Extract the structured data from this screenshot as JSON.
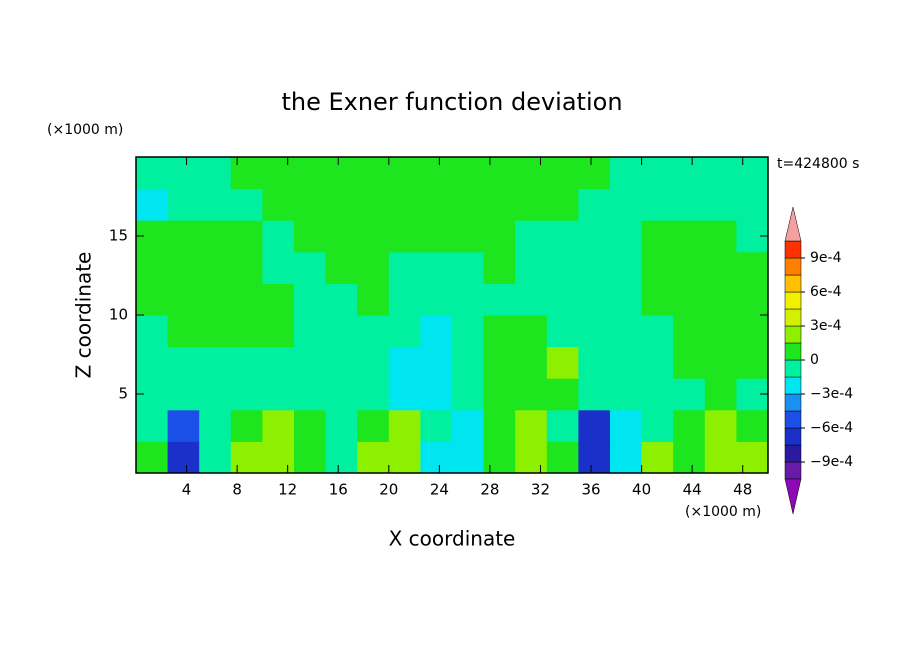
{
  "chart_data": {
    "type": "contour",
    "title": "the Exner function deviation",
    "x_label": "X coordinate",
    "y_label": "Z coordinate",
    "x_unit": "(×1000 m)",
    "y_unit": "(×1000 m)",
    "time_label": "t=424800 s",
    "xlim": [
      0,
      50
    ],
    "ylim": [
      0,
      20
    ],
    "xticks": [
      4,
      8,
      12,
      16,
      20,
      24,
      28,
      32,
      36,
      40,
      44,
      48
    ],
    "yticks": [
      5,
      10,
      15
    ],
    "x": [
      1.25,
      3.75,
      6.25,
      8.75,
      11.25,
      13.75,
      16.25,
      18.75,
      21.25,
      23.75,
      26.25,
      28.75,
      31.25,
      33.75,
      36.25,
      38.75,
      41.25,
      43.75,
      46.25,
      48.75
    ],
    "y": [
      1,
      3,
      5,
      7,
      9,
      11,
      13,
      15,
      17,
      19
    ],
    "z": [
      [
        7e-05,
        -0.0007,
        -7e-05,
        0.0002,
        0.0002,
        7e-05,
        -7e-05,
        0.0002,
        0.0002,
        -0.0002,
        -0.0002,
        7e-05,
        0.0002,
        7e-05,
        -0.0007,
        -0.0002,
        0.0002,
        7e-05,
        0.0002,
        0.0002
      ],
      [
        -7e-05,
        -0.0005,
        -7e-05,
        7e-05,
        0.0002,
        7e-05,
        -7e-05,
        7e-05,
        0.0002,
        -7e-05,
        -0.0002,
        7e-05,
        0.0002,
        -7e-05,
        -0.0007,
        -0.0002,
        -7e-05,
        7e-05,
        0.0002,
        7e-05
      ],
      [
        -7e-05,
        -7e-05,
        -7e-05,
        -7e-05,
        -7e-05,
        -7e-05,
        -7e-05,
        -7e-05,
        -0.0002,
        -0.0002,
        -7e-05,
        7e-05,
        7e-05,
        7e-05,
        -7e-05,
        -7e-05,
        -7e-05,
        -7e-05,
        7e-05,
        -7e-05
      ],
      [
        -7e-05,
        -7e-05,
        -7e-05,
        -7e-05,
        -7e-05,
        -7e-05,
        -7e-05,
        -7e-05,
        -0.0002,
        -0.0002,
        -7e-05,
        7e-05,
        7e-05,
        0.0002,
        -7e-05,
        -7e-05,
        -7e-05,
        7e-05,
        7e-05,
        7e-05
      ],
      [
        -7e-05,
        7e-05,
        7e-05,
        7e-05,
        7e-05,
        -7e-05,
        -7e-05,
        -7e-05,
        -7e-05,
        -0.0002,
        -7e-05,
        7e-05,
        7e-05,
        -7e-05,
        -7e-05,
        -7e-05,
        -7e-05,
        7e-05,
        7e-05,
        7e-05
      ],
      [
        7e-05,
        7e-05,
        7e-05,
        7e-05,
        7e-05,
        -7e-05,
        -7e-05,
        7e-05,
        -7e-05,
        -7e-05,
        -7e-05,
        -7e-05,
        -7e-05,
        -7e-05,
        -7e-05,
        -7e-05,
        7e-05,
        7e-05,
        7e-05,
        7e-05
      ],
      [
        7e-05,
        7e-05,
        7e-05,
        7e-05,
        -7e-05,
        -7e-05,
        7e-05,
        7e-05,
        -7e-05,
        -7e-05,
        -7e-05,
        7e-05,
        -7e-05,
        -7e-05,
        -7e-05,
        -7e-05,
        7e-05,
        7e-05,
        7e-05,
        7e-05
      ],
      [
        7e-05,
        7e-05,
        7e-05,
        7e-05,
        -7e-05,
        7e-05,
        7e-05,
        7e-05,
        7e-05,
        7e-05,
        7e-05,
        7e-05,
        -7e-05,
        -7e-05,
        -7e-05,
        -7e-05,
        7e-05,
        7e-05,
        7e-05,
        -7e-05
      ],
      [
        -0.0002,
        -7e-05,
        -7e-05,
        -7e-05,
        7e-05,
        7e-05,
        7e-05,
        7e-05,
        7e-05,
        7e-05,
        7e-05,
        7e-05,
        7e-05,
        7e-05,
        -7e-05,
        -7e-05,
        -7e-05,
        -7e-05,
        -7e-05,
        -7e-05
      ],
      [
        -7e-05,
        -7e-05,
        -7e-05,
        7e-05,
        7e-05,
        7e-05,
        7e-05,
        7e-05,
        7e-05,
        7e-05,
        7e-05,
        7e-05,
        7e-05,
        7e-05,
        7e-05,
        -7e-05,
        -7e-05,
        -7e-05,
        -7e-05,
        -7e-05
      ]
    ],
    "levels": [
      -0.00105,
      -0.0009,
      -0.00075,
      -0.0006,
      -0.00045,
      -0.0003,
      -0.00015,
      0,
      0.00015,
      0.0003,
      0.00045,
      0.0006,
      0.00075,
      0.0009,
      0.00105
    ],
    "colors": [
      "#8c0ab4",
      "#6a1aa8",
      "#2a1aa0",
      "#1a30c8",
      "#1a50e8",
      "#1a90f0",
      "#00e6f0",
      "#00f0a0",
      "#1ee61e",
      "#8cf000",
      "#d2f000",
      "#f0f000",
      "#ffc000",
      "#ff8000",
      "#ff3000",
      "#f4a0a0"
    ],
    "colorbar_ticks": [
      {
        "value": 0.0009,
        "label": "9e-4"
      },
      {
        "value": 0.0006,
        "label": "6e-4"
      },
      {
        "value": 0.0003,
        "label": "3e-4"
      },
      0,
      {
        "value": -0.0003,
        "label": "−3e-4"
      },
      {
        "value": -0.0006,
        "label": "−6e-4"
      },
      {
        "value": -0.0009,
        "label": "−9e-4"
      }
    ]
  }
}
